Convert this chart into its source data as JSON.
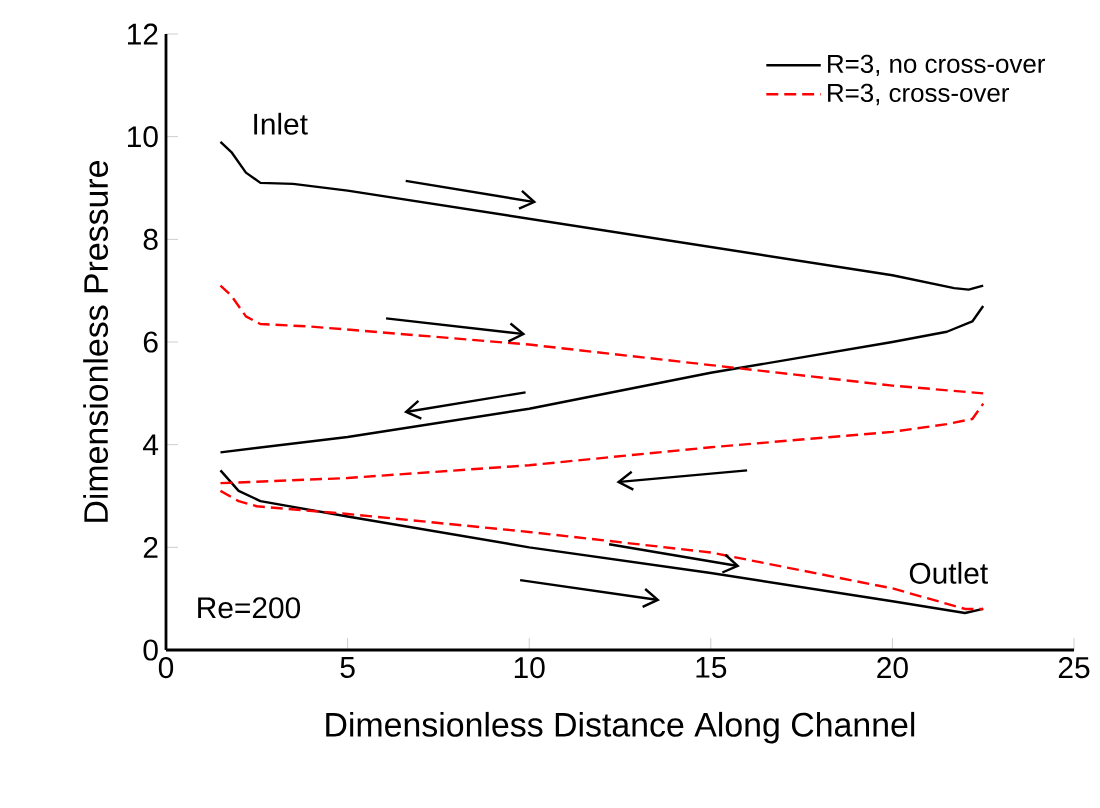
{
  "chart_data": {
    "type": "line",
    "xlabel": "Dimensionless Distance Along Channel",
    "ylabel": "Dimensionless Pressure",
    "xlim": [
      0,
      25
    ],
    "xticks": [
      0,
      5,
      10,
      15,
      20,
      25
    ],
    "ylim": [
      0,
      12
    ],
    "yticks": [
      0,
      2,
      4,
      6,
      8,
      10,
      12
    ],
    "legend": "top right",
    "grid": false,
    "series": [
      {
        "name": "R=3, no cross-over",
        "color": "#000000",
        "line_style": "solid",
        "x": [
          1.5,
          1.8,
          2.2,
          2.6,
          3.5,
          5,
          10,
          15,
          20,
          21.7,
          22.1,
          22.5
        ],
        "values": [
          9.9,
          9.7,
          9.3,
          9.1,
          9.08,
          8.95,
          8.4,
          7.85,
          7.3,
          7.05,
          7.02,
          7.1
        ]
      },
      {
        "color": "#000000",
        "line_style": "solid",
        "x": [
          1.5,
          5,
          10,
          15,
          20,
          21.5,
          22.2,
          22.5
        ],
        "values": [
          3.85,
          4.15,
          4.7,
          5.4,
          6.0,
          6.2,
          6.4,
          6.7
        ]
      },
      {
        "color": "#000000",
        "line_style": "solid",
        "x": [
          1.5,
          2,
          2.6,
          5,
          10,
          15,
          20,
          22,
          22.5
        ],
        "values": [
          3.5,
          3.1,
          2.9,
          2.6,
          2.0,
          1.5,
          0.95,
          0.72,
          0.8
        ]
      },
      {
        "name": "R=3, cross-over",
        "color": "#ff0000",
        "line_style": "dashed",
        "x": [
          1.5,
          1.8,
          2.2,
          2.6,
          4,
          10,
          15,
          20,
          22.5
        ],
        "values": [
          7.1,
          6.9,
          6.5,
          6.35,
          6.3,
          5.95,
          5.55,
          5.15,
          5.0
        ]
      },
      {
        "color": "#ff0000",
        "line_style": "dashed",
        "x": [
          1.5,
          5,
          10,
          15,
          20,
          21.5,
          22.2,
          22.5
        ],
        "values": [
          3.25,
          3.35,
          3.6,
          3.95,
          4.25,
          4.4,
          4.5,
          4.8
        ]
      },
      {
        "color": "#ff0000",
        "line_style": "dashed",
        "x": [
          1.5,
          2,
          2.5,
          5,
          10,
          15,
          20,
          22,
          22.5
        ],
        "values": [
          3.1,
          2.9,
          2.8,
          2.65,
          2.3,
          1.9,
          1.2,
          0.8,
          0.8
        ]
      }
    ],
    "annotations": [
      {
        "text": "Inlet",
        "x": 1.5,
        "y": 9.9
      },
      {
        "text": "Outlet",
        "x": 22.5,
        "y": 0.8
      },
      "Re=200"
    ]
  }
}
